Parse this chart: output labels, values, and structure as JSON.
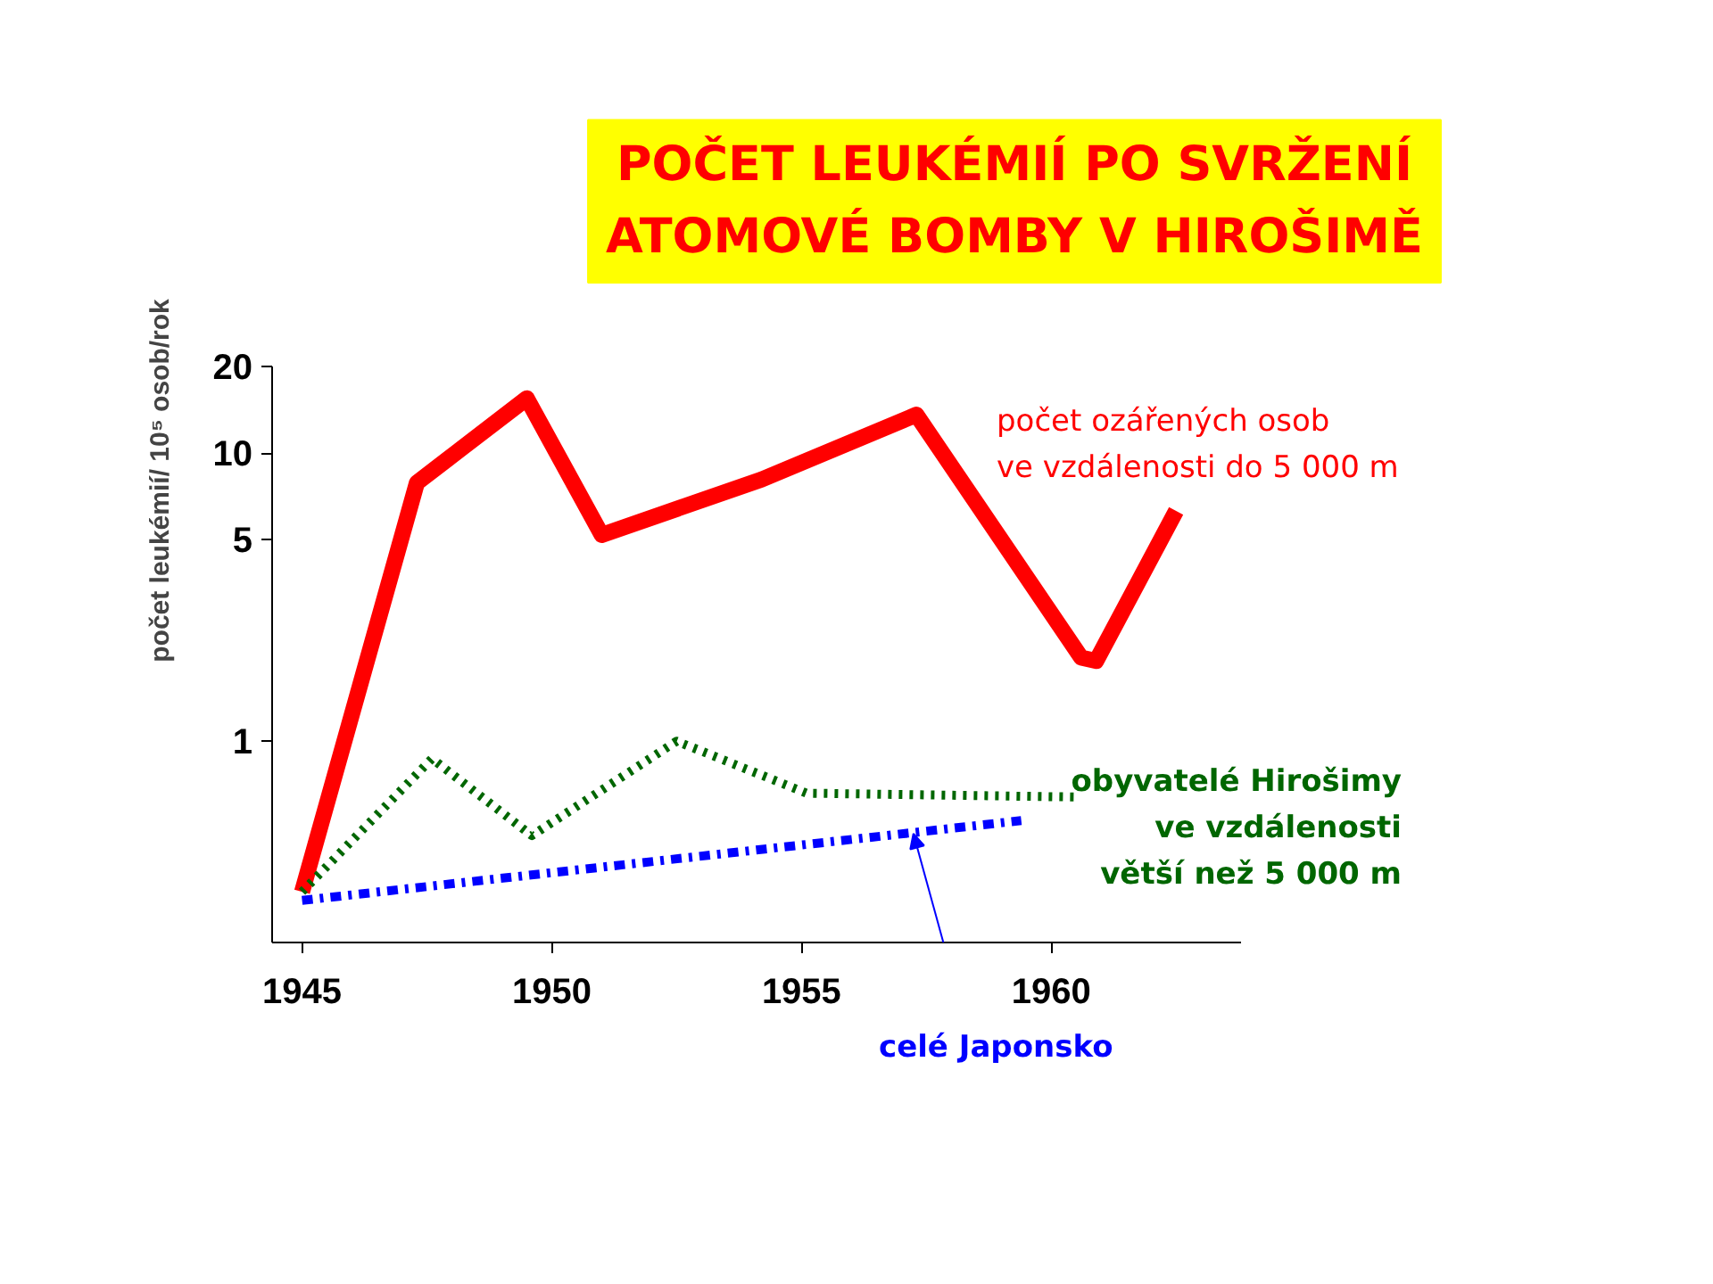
{
  "chart_data": {
    "type": "line",
    "title": "POČET LEUKÉMIÍ PO SVRŽENÍ\nATOMOVÉ BOMBY V HIROŠIMĚ",
    "ylabel": "počet leukémií/ 10⁵ osob/rok",
    "log": true,
    "xlim": [
      1944.4,
      1963.8
    ],
    "xticks": [
      1945,
      1950,
      1955,
      1960
    ],
    "ylim": [
      0.2,
      20
    ],
    "yticks": [
      1,
      5,
      10,
      20
    ],
    "grid": false,
    "legend": false,
    "marker": "none",
    "series": [
      {
        "name": "počet ozářených osob\nve vzdálenosti do 5 000 m",
        "color": "#ff0000",
        "line_style": "solid",
        "x": [
          1945.0,
          1947.3,
          1949.5,
          1951.0,
          1954.2,
          1957.3,
          1960.6,
          1960.9,
          1962.5
        ],
        "values": [
          0.3,
          7.9,
          15.5,
          5.2,
          8.1,
          13.6,
          1.95,
          1.9,
          6.3
        ]
      },
      {
        "name": "obyvatelé Hirošimy\nve vzdálenosti\nvětší než 5 000 m",
        "color": "#006600",
        "line_style": "dotted",
        "x": [
          1945.0,
          1947.6,
          1949.6,
          1952.5,
          1955.1,
          1960.5
        ],
        "values": [
          0.3,
          0.87,
          0.47,
          1.0,
          0.66,
          0.64
        ]
      },
      {
        "name": "celé Japonsko",
        "color": "#0000ff",
        "line_style": "dashdot",
        "x": [
          1945.0,
          1959.4
        ],
        "values": [
          0.28,
          0.53
        ]
      }
    ]
  }
}
